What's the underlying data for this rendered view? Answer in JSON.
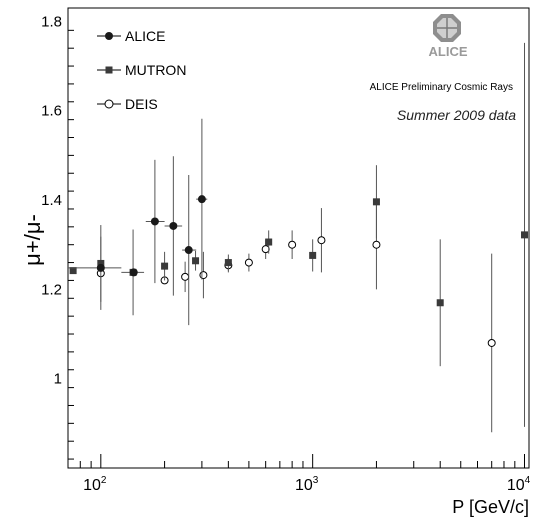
{
  "chart_data": {
    "type": "scatter",
    "xlabel": "P [GeV/c]",
    "ylabel": "μ+/μ-",
    "xscale": "log",
    "xlim": [
      70,
      10500
    ],
    "ylim": [
      0.8,
      1.83
    ],
    "y_ticks": [
      "1",
      "1.2",
      "1.4",
      "1.6",
      "1.8"
    ],
    "x_ticks": [
      {
        "value": 100,
        "base": "10",
        "exp": "2"
      },
      {
        "value": 1000,
        "base": "10",
        "exp": "3"
      },
      {
        "value": 10000,
        "base": "10",
        "exp": "4"
      }
    ],
    "legend_position": "top-left",
    "annotations": [
      "ALICE Preliminary Cosmic Rays",
      "Summer 2009  data"
    ],
    "logo_text": "ALICE",
    "series": [
      {
        "name": "ALICE",
        "marker": "filled-circle",
        "points": [
          {
            "x": 100,
            "y": 1.248,
            "yerr": 0.0,
            "xlo": 70,
            "xhi": 125
          },
          {
            "x": 143,
            "y": 1.238,
            "yerr": 0.0,
            "xlo": 125,
            "xhi": 160
          },
          {
            "x": 180,
            "y": 1.352,
            "yerr": 0.138,
            "xlo": 163,
            "xhi": 200
          },
          {
            "x": 220,
            "y": 1.342,
            "yerr": 0.156,
            "xlo": 200,
            "xhi": 242
          },
          {
            "x": 260,
            "y": 1.288,
            "yerr": 0.168,
            "xlo": 242,
            "xhi": 282
          },
          {
            "x": 300,
            "y": 1.402,
            "yerr": 0.18,
            "xlo": 282,
            "xhi": 318
          }
        ]
      },
      {
        "name": "MUTRON",
        "marker": "filled-square",
        "points": [
          {
            "x": 74,
            "y": 1.242,
            "yerr": 0.0
          },
          {
            "x": 100,
            "y": 1.258,
            "yerr": 0.086
          },
          {
            "x": 142,
            "y": 1.238,
            "yerr": 0.096
          },
          {
            "x": 200,
            "y": 1.252,
            "yerr": 0.032
          },
          {
            "x": 280,
            "y": 1.264,
            "yerr": 0.022
          },
          {
            "x": 400,
            "y": 1.26,
            "yerr": 0.018
          },
          {
            "x": 620,
            "y": 1.306,
            "yerr": 0.026
          },
          {
            "x": 1000,
            "y": 1.276,
            "yerr": 0.036
          },
          {
            "x": 2000,
            "y": 1.396,
            "yerr": 0.082
          },
          {
            "x": 4000,
            "y": 1.17,
            "yerr": 0.142
          },
          {
            "x": 10000,
            "y": 1.322,
            "yerr": 0.43
          }
        ]
      },
      {
        "name": "DEIS",
        "marker": "open-circle",
        "points": [
          {
            "x": 100,
            "y": 1.236,
            "yerr": 0.082
          },
          {
            "x": 200,
            "y": 1.22,
            "yerr": 0.0
          },
          {
            "x": 250,
            "y": 1.228,
            "yerr": 0.034
          },
          {
            "x": 305,
            "y": 1.232,
            "yerr": 0.052
          },
          {
            "x": 400,
            "y": 1.254,
            "yerr": 0.016
          },
          {
            "x": 500,
            "y": 1.26,
            "yerr": 0.02
          },
          {
            "x": 600,
            "y": 1.29,
            "yerr": 0.022
          },
          {
            "x": 800,
            "y": 1.3,
            "yerr": 0.032
          },
          {
            "x": 1100,
            "y": 1.31,
            "yerr": 0.072
          },
          {
            "x": 2000,
            "y": 1.3,
            "yerr": 0.1
          },
          {
            "x": 7000,
            "y": 1.08,
            "yerr": 0.2
          }
        ]
      }
    ]
  }
}
